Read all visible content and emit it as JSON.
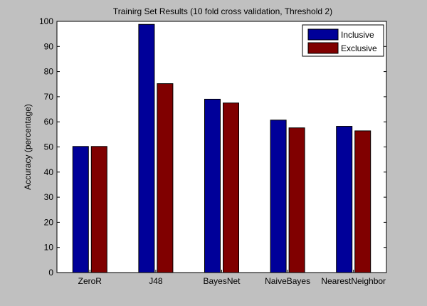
{
  "chart_data": {
    "type": "bar",
    "title": "Trainirg Set Results (10 fold cross validation, Threshold 2)",
    "xlabel": "",
    "ylabel": "Accuracy (percentage)",
    "ylim": [
      0,
      100
    ],
    "yticks": [
      0,
      10,
      20,
      30,
      40,
      50,
      60,
      70,
      80,
      90,
      100
    ],
    "categories": [
      "ZeroR",
      "J48",
      "BayesNet",
      "NaiveBayes",
      "NearestNeighbor"
    ],
    "series": [
      {
        "name": "Inclusive",
        "color": "#000099",
        "values": [
          50.2,
          98.8,
          69.0,
          60.7,
          58.2
        ]
      },
      {
        "name": "Exclusive",
        "color": "#800000",
        "values": [
          50.2,
          75.2,
          67.5,
          57.6,
          56.4
        ]
      }
    ],
    "grid": false,
    "legend_position": "top-right",
    "background_color": "#c0c0c0",
    "plot_background_color": "#ffffff"
  }
}
